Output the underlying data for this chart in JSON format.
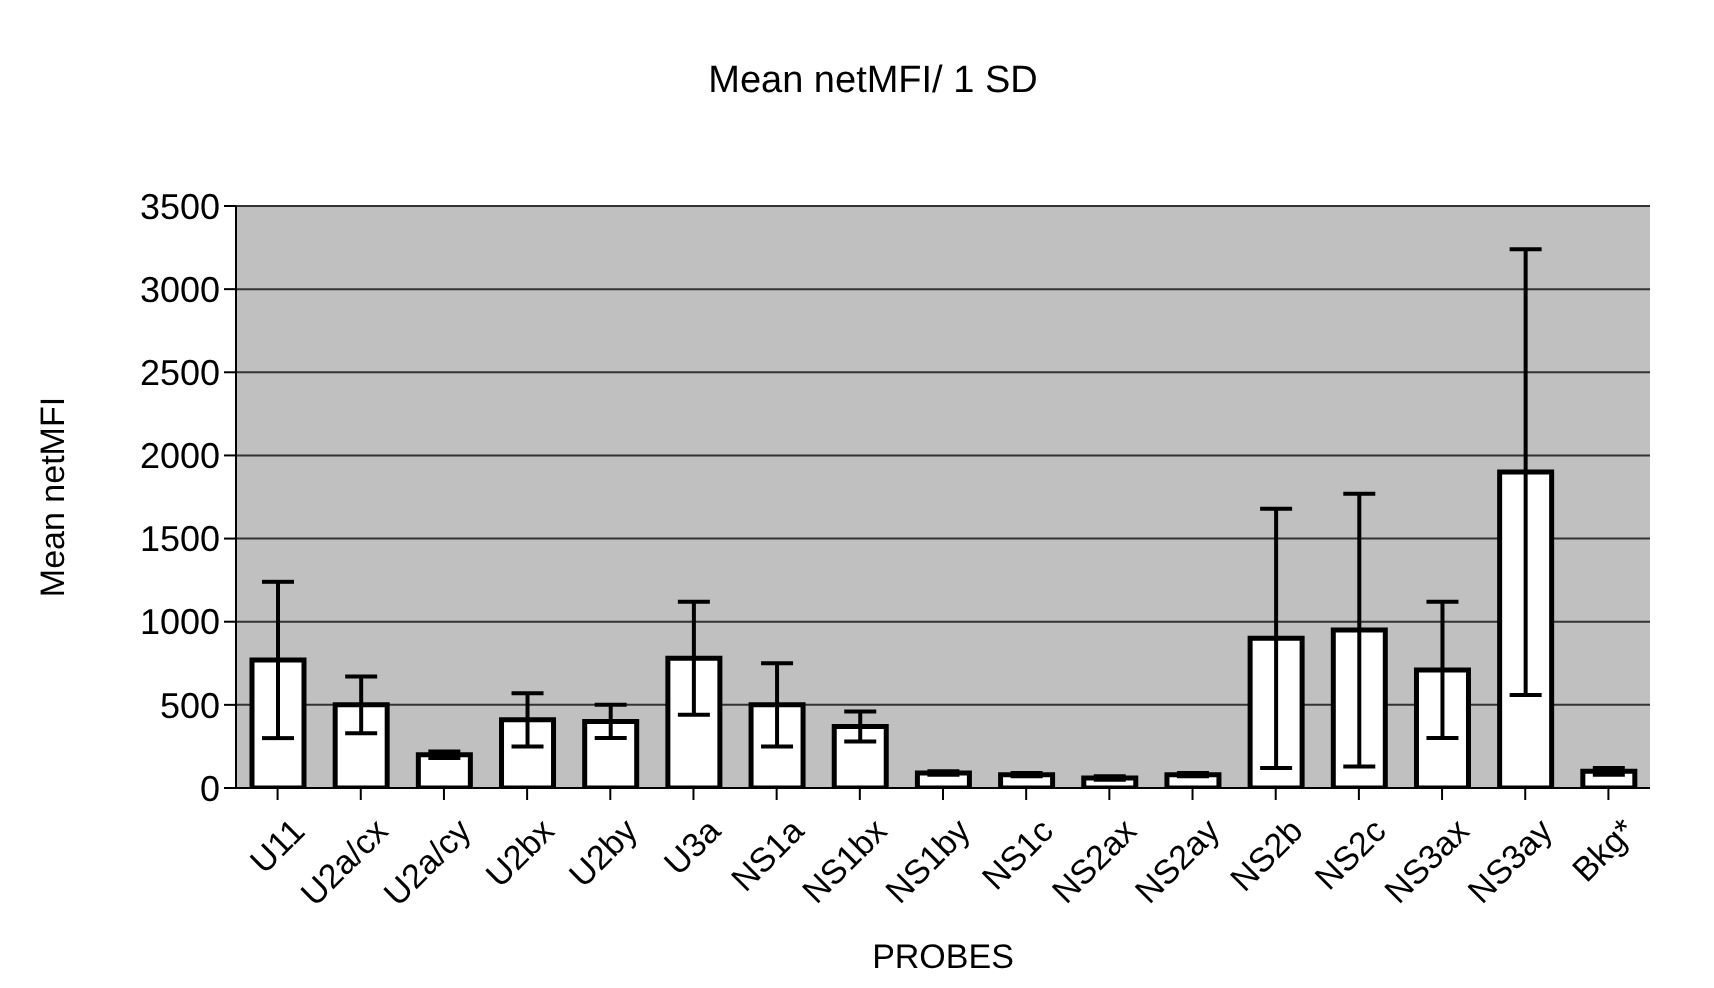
{
  "chart_data": {
    "type": "bar",
    "title": "Mean netMFI/ 1 SD",
    "xlabel": "PROBES",
    "ylabel": "Mean netMFI",
    "categories": [
      "U11",
      "U2a/cx",
      "U2a/cy",
      "U2bx",
      "U2by",
      "U3a",
      "NS1a",
      "NS1bx",
      "NS1by",
      "NS1c",
      "NS2ax",
      "NS2ay",
      "NS2b",
      "NS2c",
      "NS3ax",
      "NS3ay",
      "Bkg*"
    ],
    "values": [
      770,
      500,
      200,
      410,
      400,
      780,
      500,
      370,
      90,
      80,
      60,
      80,
      900,
      950,
      710,
      1900,
      100
    ],
    "errors": [
      470,
      170,
      20,
      160,
      100,
      340,
      250,
      90,
      10,
      10,
      10,
      10,
      780,
      820,
      410,
      1340,
      20
    ],
    "color": "#ffffff",
    "ylim": [
      0,
      3500
    ],
    "yticks": [
      0,
      500,
      1000,
      1500,
      2000,
      2500,
      3000,
      3500
    ],
    "grid": "y"
  }
}
